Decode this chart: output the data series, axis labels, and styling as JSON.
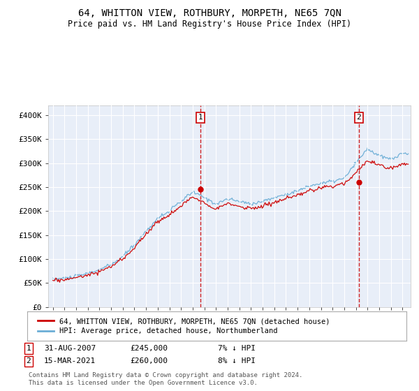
{
  "title": "64, WHITTON VIEW, ROTHBURY, MORPETH, NE65 7QN",
  "subtitle": "Price paid vs. HM Land Registry's House Price Index (HPI)",
  "ylabel_ticks": [
    "£0",
    "£50K",
    "£100K",
    "£150K",
    "£200K",
    "£250K",
    "£300K",
    "£350K",
    "£400K"
  ],
  "ylim": [
    0,
    420000
  ],
  "yticks": [
    0,
    50000,
    100000,
    150000,
    200000,
    250000,
    300000,
    350000,
    400000
  ],
  "sale1_x": 2007.667,
  "sale1_value": 245000,
  "sale2_x": 2021.25,
  "sale2_value": 260000,
  "line_color_property": "#cc0000",
  "line_color_hpi": "#6baed6",
  "background_color": "#e8eef8",
  "grid_color": "#ffffff",
  "legend_label_property": "64, WHITTON VIEW, ROTHBURY, MORPETH, NE65 7QN (detached house)",
  "legend_label_hpi": "HPI: Average price, detached house, Northumberland",
  "footer": "Contains HM Land Registry data © Crown copyright and database right 2024.\nThis data is licensed under the Open Government Licence v3.0.",
  "hpi_year_vals": {
    "1995": 58000,
    "1996": 60000,
    "1997": 64000,
    "1998": 70000,
    "1999": 78000,
    "2000": 88000,
    "2001": 105000,
    "2002": 130000,
    "2003": 158000,
    "2004": 185000,
    "2005": 200000,
    "2006": 220000,
    "2007": 240000,
    "2008": 228000,
    "2009": 215000,
    "2010": 225000,
    "2011": 220000,
    "2012": 215000,
    "2013": 220000,
    "2014": 228000,
    "2015": 235000,
    "2016": 242000,
    "2017": 252000,
    "2018": 258000,
    "2019": 262000,
    "2020": 268000,
    "2021": 300000,
    "2022": 330000,
    "2023": 315000,
    "2024": 308000,
    "2025": 320000
  },
  "prop_year_vals": {
    "1995": 55000,
    "1996": 57000,
    "1997": 61000,
    "1998": 67000,
    "1999": 74000,
    "2000": 84000,
    "2001": 100000,
    "2002": 124000,
    "2003": 152000,
    "2004": 178000,
    "2005": 192000,
    "2006": 210000,
    "2007": 230000,
    "2008": 218000,
    "2009": 205000,
    "2010": 215000,
    "2011": 210000,
    "2012": 205000,
    "2013": 210000,
    "2014": 218000,
    "2015": 225000,
    "2016": 232000,
    "2017": 242000,
    "2018": 248000,
    "2019": 252000,
    "2020": 258000,
    "2021": 280000,
    "2022": 305000,
    "2023": 295000,
    "2024": 290000,
    "2025": 298000
  }
}
